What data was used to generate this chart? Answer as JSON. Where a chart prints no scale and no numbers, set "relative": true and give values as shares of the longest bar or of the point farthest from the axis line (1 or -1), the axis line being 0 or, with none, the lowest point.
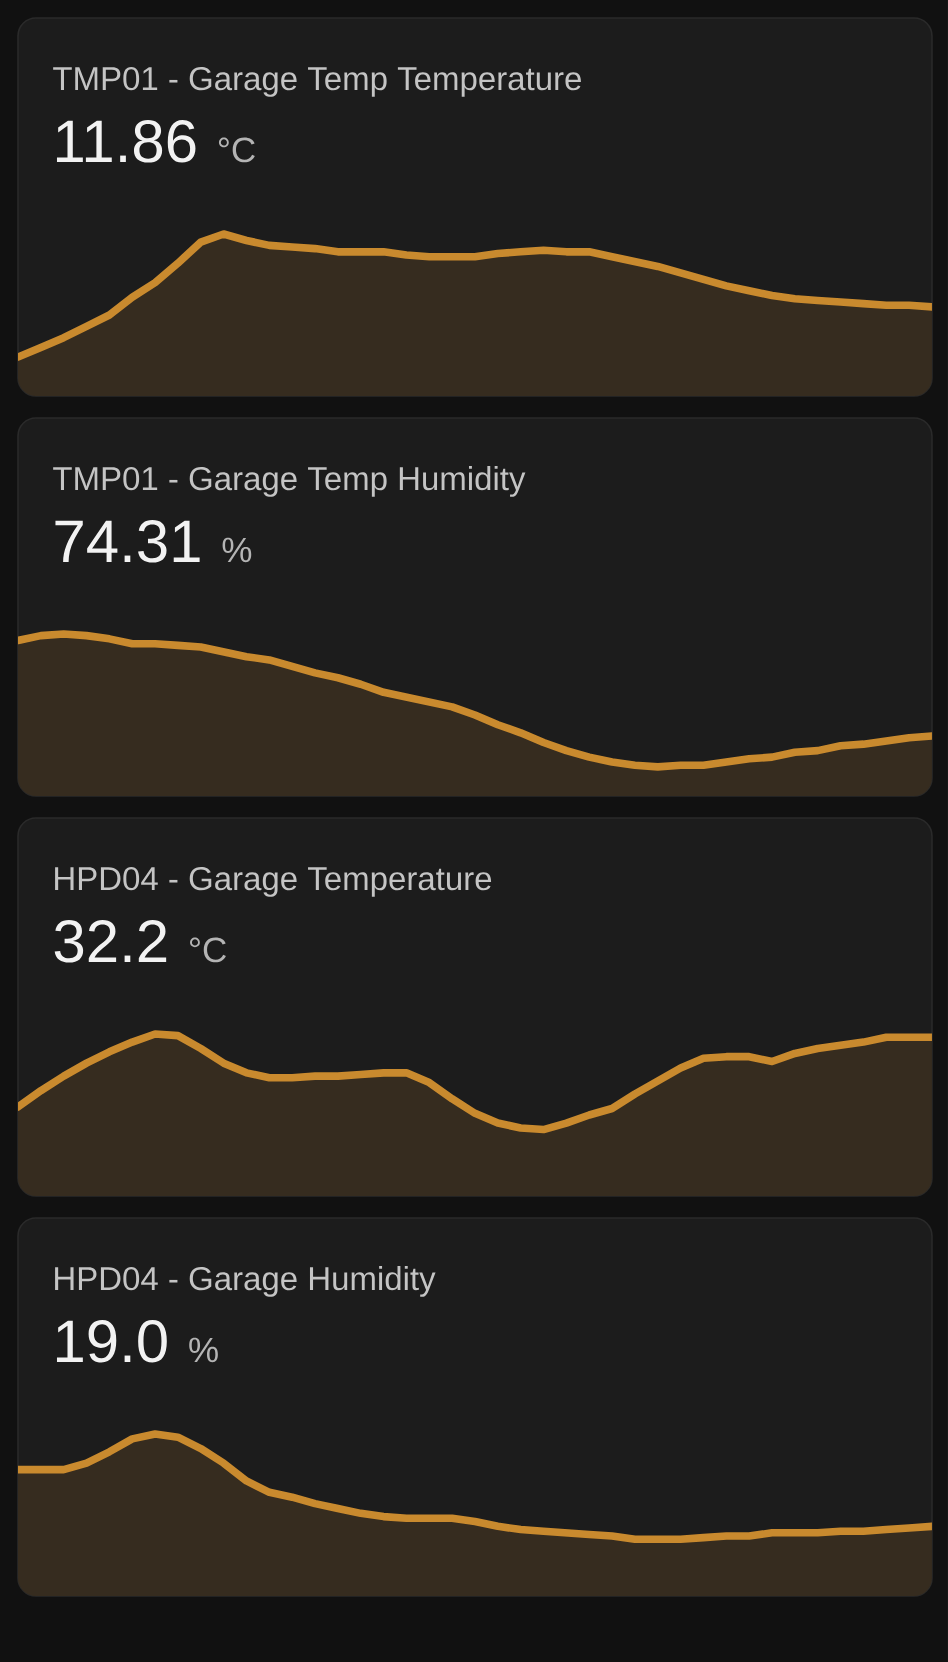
{
  "chart_data": [
    {
      "type": "area",
      "title": "TMP01 - Garage Temp Temperature",
      "annotations": [
        "11.86",
        "°C"
      ],
      "categories": [
        null,
        null,
        null,
        null,
        null,
        null,
        null,
        null,
        null,
        null,
        null,
        null,
        null,
        null,
        null,
        null,
        null,
        null,
        null,
        null,
        null,
        null,
        null,
        null,
        null,
        null,
        null,
        null,
        null,
        null,
        null,
        null,
        null,
        null,
        null,
        null,
        null,
        null,
        null,
        null,
        null
      ],
      "values": [
        0.24,
        0.3,
        0.36,
        0.43,
        0.5,
        0.61,
        0.7,
        0.82,
        0.95,
        1.0,
        0.96,
        0.93,
        0.92,
        0.91,
        0.89,
        0.89,
        0.89,
        0.87,
        0.86,
        0.86,
        0.86,
        0.88,
        0.89,
        0.9,
        0.89,
        0.89,
        0.86,
        0.83,
        0.8,
        0.76,
        0.72,
        0.68,
        0.65,
        0.62,
        0.6,
        0.59,
        0.58,
        0.57,
        0.56,
        0.56,
        0.55
      ],
      "color": "#c98a2e",
      "relative": true
    },
    {
      "type": "area",
      "title": "TMP01 - Garage Temp Humidity",
      "annotations": [
        "74.31",
        "%"
      ],
      "categories": [
        null,
        null,
        null,
        null,
        null,
        null,
        null,
        null,
        null,
        null,
        null,
        null,
        null,
        null,
        null,
        null,
        null,
        null,
        null,
        null,
        null,
        null,
        null,
        null,
        null,
        null,
        null,
        null,
        null,
        null,
        null,
        null,
        null,
        null,
        null,
        null,
        null,
        null,
        null,
        null,
        null
      ],
      "values": [
        0.96,
        0.99,
        1.0,
        0.99,
        0.97,
        0.94,
        0.94,
        0.93,
        0.92,
        0.89,
        0.86,
        0.84,
        0.8,
        0.76,
        0.73,
        0.69,
        0.64,
        0.61,
        0.58,
        0.55,
        0.5,
        0.44,
        0.39,
        0.33,
        0.28,
        0.24,
        0.21,
        0.19,
        0.18,
        0.19,
        0.19,
        0.21,
        0.23,
        0.24,
        0.27,
        0.28,
        0.31,
        0.32,
        0.34,
        0.36,
        0.37
      ],
      "color": "#c98a2e",
      "relative": true
    },
    {
      "type": "area",
      "title": "HPD04 - Garage Temperature",
      "annotations": [
        "32.2",
        "°C"
      ],
      "categories": [
        null,
        null,
        null,
        null,
        null,
        null,
        null,
        null,
        null,
        null,
        null,
        null,
        null,
        null,
        null,
        null,
        null,
        null,
        null,
        null,
        null,
        null,
        null,
        null,
        null,
        null,
        null,
        null,
        null,
        null,
        null,
        null,
        null,
        null,
        null,
        null,
        null,
        null,
        null,
        null,
        null
      ],
      "values": [
        0.55,
        0.65,
        0.74,
        0.82,
        0.89,
        0.95,
        1.0,
        0.99,
        0.91,
        0.82,
        0.76,
        0.73,
        0.73,
        0.74,
        0.74,
        0.75,
        0.76,
        0.76,
        0.7,
        0.6,
        0.51,
        0.45,
        0.42,
        0.41,
        0.45,
        0.5,
        0.54,
        0.63,
        0.71,
        0.79,
        0.85,
        0.86,
        0.86,
        0.83,
        0.88,
        0.91,
        0.93,
        0.95,
        0.98,
        0.98,
        0.98
      ],
      "color": "#c98a2e",
      "relative": true
    },
    {
      "type": "area",
      "title": "HPD04 - Garage Humidity",
      "annotations": [
        "19.0",
        "%"
      ],
      "categories": [
        null,
        null,
        null,
        null,
        null,
        null,
        null,
        null,
        null,
        null,
        null,
        null,
        null,
        null,
        null,
        null,
        null,
        null,
        null,
        null,
        null,
        null,
        null,
        null,
        null,
        null,
        null,
        null,
        null,
        null,
        null,
        null,
        null,
        null,
        null,
        null,
        null,
        null,
        null,
        null,
        null
      ],
      "values": [
        0.78,
        0.78,
        0.78,
        0.82,
        0.89,
        0.97,
        1.0,
        0.98,
        0.91,
        0.82,
        0.71,
        0.64,
        0.61,
        0.57,
        0.54,
        0.51,
        0.49,
        0.48,
        0.48,
        0.48,
        0.46,
        0.43,
        0.41,
        0.4,
        0.39,
        0.38,
        0.37,
        0.35,
        0.35,
        0.35,
        0.36,
        0.37,
        0.37,
        0.39,
        0.39,
        0.39,
        0.4,
        0.4,
        0.41,
        0.42,
        0.43
      ],
      "color": "#c98a2e",
      "relative": true
    }
  ]
}
